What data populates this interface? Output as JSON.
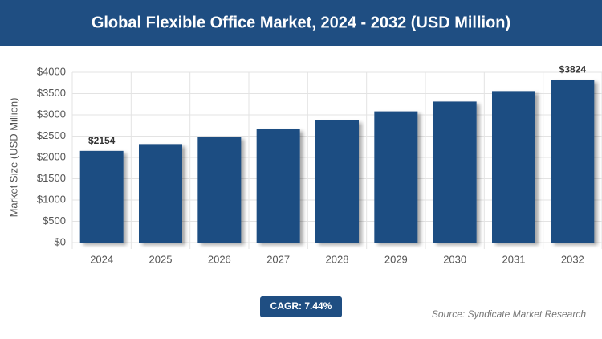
{
  "chart_data": {
    "type": "bar",
    "title": "Global Flexible Office Market, 2024 - 2032 (USD Million)",
    "y_label": "Market Size (USD Million)",
    "categories": [
      "2024",
      "2025",
      "2026",
      "2027",
      "2028",
      "2029",
      "2030",
      "2031",
      "2032"
    ],
    "values": [
      2154,
      2314,
      2486,
      2671,
      2870,
      3083,
      3313,
      3559,
      3824
    ],
    "value_labels": [
      "$2154",
      null,
      null,
      null,
      null,
      null,
      null,
      null,
      "$3824"
    ],
    "color": "#1f4e82",
    "ylim": [
      0,
      4000
    ],
    "yticks": [
      {
        "value": 0,
        "label": "$0"
      },
      {
        "value": 500,
        "label": "$500"
      },
      {
        "value": 1000,
        "label": "$1000"
      },
      {
        "value": 1500,
        "label": "$1500"
      },
      {
        "value": 2000,
        "label": "$2000"
      },
      {
        "value": 2500,
        "label": "$2500"
      },
      {
        "value": 3000,
        "label": "$3000"
      },
      {
        "value": 3500,
        "label": "$3500"
      },
      {
        "value": 4000,
        "label": "$4000"
      }
    ],
    "grid": true,
    "cagr": "CAGR: 7.44%",
    "source": "Source: Syndicate Market Research"
  }
}
